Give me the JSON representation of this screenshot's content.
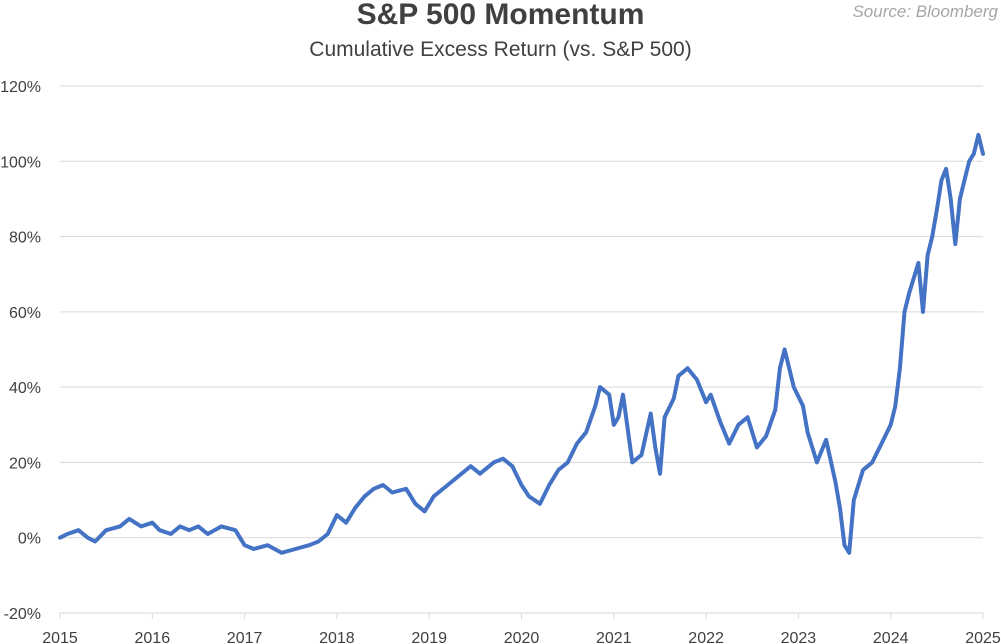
{
  "header": {
    "title": "S&P 500 Momentum",
    "subtitle": "Cumulative Excess Return (vs. S&P 500)",
    "source": "Source: Bloomberg"
  },
  "colors": {
    "line": "#4472c4",
    "grid": "#d9d9d9",
    "text": "#404040"
  },
  "chart_data": {
    "type": "line",
    "title": "S&P 500 Momentum",
    "subtitle": "Cumulative Excess Return (vs. S&P 500)",
    "xlabel": "",
    "ylabel": "",
    "x_ticks": [
      "2015",
      "2016",
      "2017",
      "2018",
      "2019",
      "2020",
      "2021",
      "2022",
      "2023",
      "2024",
      "2025"
    ],
    "xlim": [
      2015,
      2025
    ],
    "y_ticks": [
      "-20%",
      "0%",
      "20%",
      "40%",
      "60%",
      "80%",
      "100%",
      "120%"
    ],
    "ylim": [
      -20,
      120
    ],
    "y_unit": "%",
    "grid": true,
    "legend": "none",
    "series": [
      {
        "x": [
          2015.0,
          2015.08,
          2015.2,
          2015.3,
          2015.38,
          2015.5,
          2015.65,
          2015.75,
          2015.88,
          2016.0,
          2016.08,
          2016.2,
          2016.3,
          2016.4,
          2016.5,
          2016.6,
          2016.75,
          2016.9,
          2017.0,
          2017.1,
          2017.25,
          2017.4,
          2017.55,
          2017.7,
          2017.8,
          2017.9,
          2018.0,
          2018.1,
          2018.2,
          2018.3,
          2018.4,
          2018.5,
          2018.6,
          2018.75,
          2018.85,
          2018.95,
          2019.05,
          2019.2,
          2019.3,
          2019.45,
          2019.55,
          2019.7,
          2019.8,
          2019.9,
          2020.0,
          2020.08,
          2020.2,
          2020.3,
          2020.4,
          2020.5,
          2020.6,
          2020.7,
          2020.8,
          2020.85,
          2020.95,
          2021.0,
          2021.05,
          2021.1,
          2021.2,
          2021.3,
          2021.4,
          2021.45,
          2021.5,
          2021.55,
          2021.65,
          2021.7,
          2021.8,
          2021.9,
          2022.0,
          2022.05,
          2022.15,
          2022.25,
          2022.35,
          2022.45,
          2022.55,
          2022.65,
          2022.75,
          2022.8,
          2022.85,
          2022.95,
          2023.05,
          2023.1,
          2023.2,
          2023.3,
          2023.4,
          2023.45,
          2023.5,
          2023.55,
          2023.6,
          2023.7,
          2023.8,
          2023.9,
          2024.0,
          2024.05,
          2024.1,
          2024.15,
          2024.2,
          2024.3,
          2024.35,
          2024.4,
          2024.45,
          2024.5,
          2024.55,
          2024.6,
          2024.65,
          2024.7,
          2024.75,
          2024.8,
          2024.85,
          2024.9,
          2024.95,
          2025.0
        ],
        "values": [
          0,
          1,
          2,
          0,
          -1,
          2,
          3,
          5,
          3,
          4,
          2,
          1,
          3,
          2,
          3,
          1,
          3,
          2,
          -2,
          -3,
          -2,
          -4,
          -3,
          -2,
          -1,
          1,
          6,
          4,
          8,
          11,
          13,
          14,
          12,
          13,
          9,
          7,
          11,
          14,
          16,
          19,
          17,
          20,
          21,
          19,
          14,
          11,
          9,
          14,
          18,
          20,
          25,
          28,
          35,
          40,
          38,
          30,
          32,
          38,
          20,
          22,
          33,
          24,
          17,
          32,
          37,
          43,
          45,
          42,
          36,
          38,
          31,
          25,
          30,
          32,
          24,
          27,
          34,
          45,
          50,
          40,
          35,
          28,
          20,
          26,
          15,
          8,
          -2,
          -4,
          10,
          18,
          20,
          25,
          30,
          35,
          45,
          60,
          65,
          73,
          60,
          75,
          80,
          87,
          95,
          98,
          90,
          78,
          90,
          95,
          100,
          102,
          107,
          102
        ]
      }
    ]
  }
}
